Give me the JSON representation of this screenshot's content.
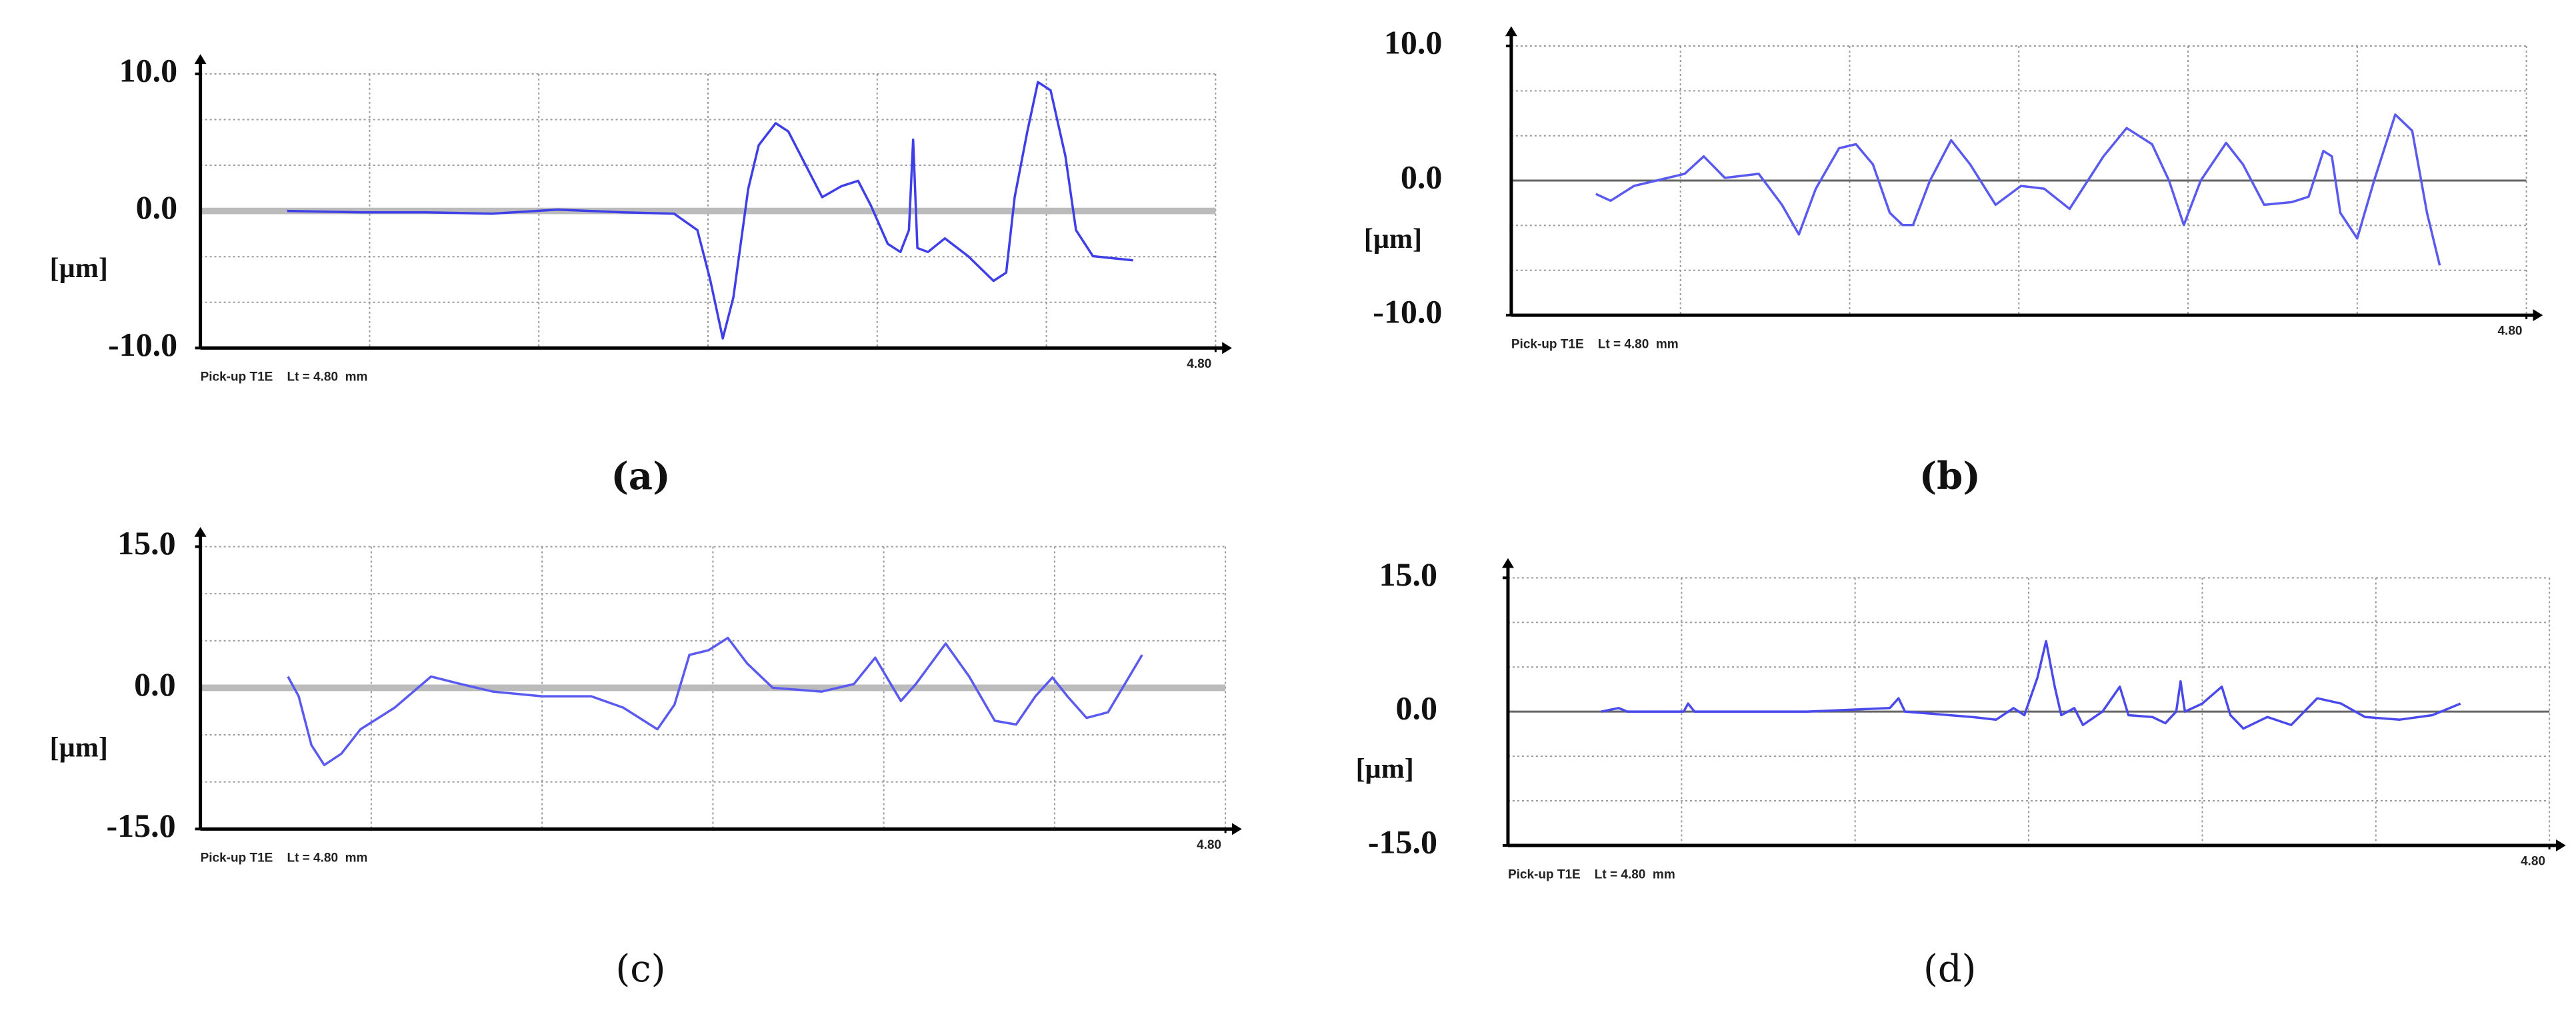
{
  "chart_data": [
    {
      "type": "line",
      "label": "(a)",
      "y_label": "[µm]",
      "note": "Pick-up T1E    Lt = 4.80  mm",
      "color": "#3f3fe8",
      "xlim": [
        0,
        4.8
      ],
      "xticks": [
        {
          "value": 4.8,
          "label": "4.80"
        }
      ],
      "ylim": [
        -10,
        10
      ],
      "yticks": [
        {
          "value": -10,
          "label": "-10.0"
        },
        {
          "value": 0,
          "label": "0.0"
        },
        {
          "value": 10,
          "label": "10.0"
        }
      ],
      "x": [
        0.41,
        0.76,
        1.07,
        1.38,
        1.69,
        2.0,
        2.24,
        2.35,
        2.41,
        2.47,
        2.52,
        2.59,
        2.64,
        2.72,
        2.78,
        2.86,
        2.94,
        3.03,
        3.11,
        3.17,
        3.25,
        3.31,
        3.35,
        3.37,
        3.39,
        3.44,
        3.52,
        3.63,
        3.75,
        3.81,
        3.85,
        3.91,
        3.96,
        4.02,
        4.09,
        4.14,
        4.22,
        4.41
      ],
      "values": [
        0,
        -0.1,
        -0.1,
        -0.2,
        0.1,
        -0.1,
        -0.2,
        -1.4,
        -5.0,
        -9.3,
        -6.3,
        1.6,
        4.8,
        6.4,
        5.8,
        3.4,
        1.0,
        1.8,
        2.2,
        0.4,
        -2.4,
        -3.0,
        -1.4,
        5.2,
        -2.7,
        -3.0,
        -2.0,
        -3.3,
        -5.1,
        -4.5,
        1.0,
        5.8,
        9.4,
        8.8,
        4.0,
        -1.4,
        -3.3,
        -3.6
      ]
    },
    {
      "type": "line",
      "label": "(b)",
      "y_label": "[µm]",
      "note": "Pick-up T1E    Lt = 4.80  mm",
      "color": "#5a5af0",
      "xlim": [
        0,
        4.8
      ],
      "xticks": [
        {
          "value": 4.8,
          "label": "4.80"
        }
      ],
      "ylim": [
        -10,
        10
      ],
      "yticks": [
        {
          "value": -10,
          "label": "-10.0"
        },
        {
          "value": 0,
          "label": "0.0"
        },
        {
          "value": 10,
          "label": "10.0"
        }
      ],
      "x": [
        0.4,
        0.47,
        0.58,
        0.74,
        0.82,
        0.91,
        1.01,
        1.17,
        1.28,
        1.36,
        1.44,
        1.55,
        1.63,
        1.71,
        1.79,
        1.85,
        1.9,
        1.98,
        2.08,
        2.17,
        2.29,
        2.41,
        2.52,
        2.64,
        2.8,
        2.91,
        3.03,
        3.11,
        3.18,
        3.26,
        3.38,
        3.46,
        3.56,
        3.69,
        3.77,
        3.84,
        3.88,
        3.92,
        4.0,
        4.08,
        4.18,
        4.26,
        4.33,
        4.39
      ],
      "values": [
        -1.0,
        -1.5,
        -0.4,
        0.2,
        0.5,
        1.8,
        0.2,
        0.5,
        -1.8,
        -4.0,
        -0.6,
        2.4,
        2.7,
        1.2,
        -2.4,
        -3.3,
        -3.3,
        0,
        3.0,
        1.2,
        -1.8,
        -0.4,
        -0.6,
        -2.1,
        1.8,
        3.9,
        2.7,
        0,
        -3.3,
        0,
        2.8,
        1.2,
        -1.8,
        -1.6,
        -1.2,
        2.2,
        1.8,
        -2.4,
        -4.3,
        0,
        4.9,
        3.7,
        -2.4,
        -6.3
      ]
    },
    {
      "type": "line",
      "label": "(c)",
      "y_label": "[µm]",
      "note": "Pick-up T1E    Lt = 4.80  mm",
      "color": "#5a5af0",
      "xlim": [
        0,
        4.8
      ],
      "xticks": [
        {
          "value": 4.8,
          "label": "4.80"
        }
      ],
      "ylim": [
        -15,
        15
      ],
      "yticks": [
        {
          "value": -15,
          "label": "-15.0"
        },
        {
          "value": 0,
          "label": "0.0"
        },
        {
          "value": 15,
          "label": "15.0"
        }
      ],
      "x": [
        0.41,
        0.46,
        0.52,
        0.58,
        0.66,
        0.75,
        0.91,
        1.08,
        1.22,
        1.37,
        1.6,
        1.83,
        1.98,
        2.14,
        2.22,
        2.29,
        2.38,
        2.47,
        2.56,
        2.68,
        2.91,
        3.06,
        3.16,
        3.22,
        3.28,
        3.35,
        3.49,
        3.6,
        3.72,
        3.82,
        3.91,
        3.99,
        4.06,
        4.15,
        4.25,
        4.41
      ],
      "values": [
        1.2,
        -0.9,
        -6.1,
        -8.2,
        -7.0,
        -4.4,
        -2.1,
        1.2,
        0.4,
        -0.4,
        -0.9,
        -0.9,
        -2.1,
        -4.4,
        -1.8,
        3.5,
        4.0,
        5.3,
        2.6,
        0,
        -0.4,
        0.4,
        3.2,
        0.9,
        -1.4,
        0.4,
        4.7,
        1.2,
        -3.5,
        -3.9,
        -0.9,
        1.1,
        -0.9,
        -3.2,
        -2.6,
        3.5
      ]
    },
    {
      "type": "line",
      "label": "(d)",
      "y_label": "[µm]",
      "note": "Pick-up T1E    Lt = 4.80  mm",
      "color": "#4a4aec",
      "xlim": [
        0,
        4.8
      ],
      "xticks": [
        {
          "value": 4.8,
          "label": "4.80"
        }
      ],
      "ylim": [
        -15,
        15
      ],
      "yticks": [
        {
          "value": -15,
          "label": "-15.0"
        },
        {
          "value": 0,
          "label": "0.0"
        },
        {
          "value": 15,
          "label": "15.0"
        }
      ],
      "x": [
        0.43,
        0.51,
        0.55,
        0.81,
        0.83,
        0.86,
        1.38,
        1.76,
        1.8,
        1.83,
        2.14,
        2.25,
        2.33,
        2.38,
        2.44,
        2.48,
        2.52,
        2.55,
        2.61,
        2.65,
        2.74,
        2.82,
        2.86,
        2.97,
        3.03,
        3.08,
        3.1,
        3.12,
        3.2,
        3.29,
        3.33,
        3.39,
        3.5,
        3.61,
        3.73,
        3.84,
        3.95,
        4.11,
        4.26,
        4.39
      ],
      "values": [
        0,
        0.4,
        0,
        0,
        0.9,
        0,
        0,
        0.4,
        1.5,
        0,
        -0.6,
        -0.9,
        0.4,
        -0.4,
        3.8,
        7.9,
        2.8,
        -0.4,
        0.4,
        -1.5,
        0,
        2.8,
        -0.4,
        -0.6,
        -1.3,
        0,
        3.4,
        0,
        0.9,
        2.8,
        -0.4,
        -1.9,
        -0.6,
        -1.5,
        1.5,
        0.9,
        -0.6,
        -0.9,
        -0.4,
        0.9
      ]
    }
  ]
}
